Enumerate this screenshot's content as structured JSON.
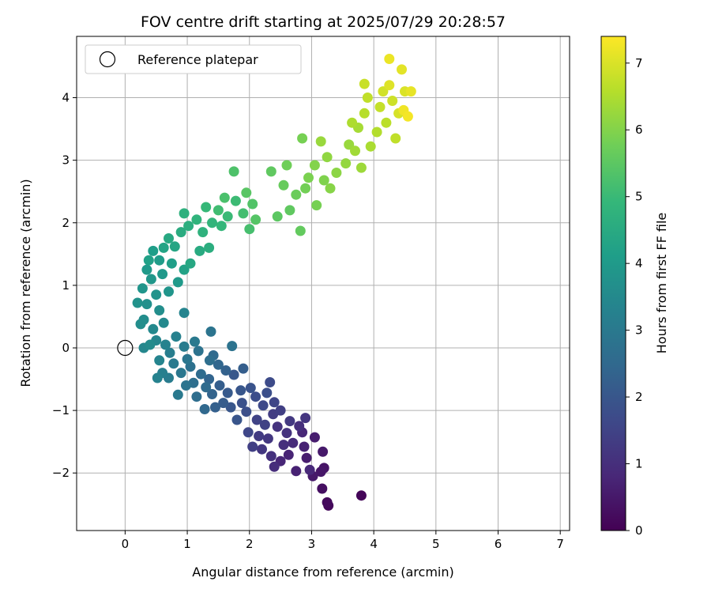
{
  "chart_data": {
    "type": "scatter",
    "title": "FOV centre drift starting at 2025/07/29 20:28:57",
    "xlabel": "Angular distance from reference (arcmin)",
    "ylabel": "Rotation from reference (arcmin)",
    "xlim": [
      -0.78,
      7.15
    ],
    "ylim": [
      -2.92,
      4.98
    ],
    "xticks": [
      0,
      1,
      2,
      3,
      4,
      5,
      6,
      7
    ],
    "yticks": [
      -2,
      -1,
      0,
      1,
      2,
      3,
      4
    ],
    "grid": true,
    "legend": {
      "position": "top-left",
      "entries": [
        "Reference platepar"
      ]
    },
    "reference_point": {
      "x": 0,
      "y": 0,
      "marker": "open-circle"
    },
    "colorbar": {
      "label": "Hours from first FF file",
      "range": [
        0,
        7.4
      ],
      "ticks": [
        0,
        1,
        2,
        3,
        4,
        5,
        6,
        7
      ],
      "colormap": "viridis"
    },
    "series": [
      {
        "points": [
          [
            3.8,
            -2.36,
            0.1
          ],
          [
            3.27,
            -2.52,
            0.15
          ],
          [
            3.25,
            -2.47,
            0.2
          ],
          [
            3.17,
            -2.25,
            0.3
          ],
          [
            3.2,
            -1.92,
            0.4
          ],
          [
            3.15,
            -1.98,
            0.45
          ],
          [
            3.02,
            -2.05,
            0.5
          ],
          [
            3.18,
            -1.66,
            0.5
          ],
          [
            3.05,
            -1.43,
            0.6
          ],
          [
            2.92,
            -1.76,
            0.6
          ],
          [
            2.75,
            -1.97,
            0.7
          ],
          [
            2.88,
            -1.58,
            0.7
          ],
          [
            2.63,
            -1.71,
            0.75
          ],
          [
            2.5,
            -1.81,
            0.8
          ],
          [
            2.85,
            -1.35,
            0.8
          ],
          [
            2.97,
            -1.95,
            0.85
          ],
          [
            2.7,
            -1.52,
            0.9
          ],
          [
            2.4,
            -1.9,
            0.95
          ],
          [
            2.55,
            -1.55,
            1.0
          ],
          [
            2.8,
            -1.25,
            1.0
          ],
          [
            2.35,
            -1.73,
            1.05
          ],
          [
            2.6,
            -1.36,
            1.1
          ],
          [
            2.45,
            -1.26,
            1.1
          ],
          [
            2.9,
            -1.12,
            1.15
          ],
          [
            2.2,
            -1.62,
            1.2
          ],
          [
            2.3,
            -1.45,
            1.2
          ],
          [
            2.65,
            -1.17,
            1.25
          ],
          [
            2.15,
            -1.41,
            1.3
          ],
          [
            2.38,
            -1.06,
            1.35
          ],
          [
            2.5,
            -1.0,
            1.4
          ],
          [
            2.05,
            -1.58,
            1.4
          ],
          [
            2.25,
            -1.23,
            1.45
          ],
          [
            2.12,
            -1.15,
            1.5
          ],
          [
            2.4,
            -0.87,
            1.55
          ],
          [
            1.98,
            -1.35,
            1.6
          ],
          [
            2.22,
            -0.92,
            1.65
          ],
          [
            2.33,
            -0.55,
            1.7
          ],
          [
            2.1,
            -0.78,
            1.75
          ],
          [
            1.95,
            -1.02,
            1.8
          ],
          [
            2.28,
            -0.72,
            1.8
          ],
          [
            1.88,
            -0.88,
            1.85
          ],
          [
            2.02,
            -0.64,
            1.9
          ],
          [
            1.8,
            -1.15,
            1.95
          ],
          [
            1.7,
            -0.95,
            2.0
          ],
          [
            1.86,
            -0.68,
            2.0
          ],
          [
            1.75,
            -0.43,
            2.05
          ],
          [
            1.65,
            -0.72,
            2.1
          ],
          [
            1.58,
            -0.88,
            2.15
          ],
          [
            1.9,
            -0.33,
            2.2
          ],
          [
            1.52,
            -0.6,
            2.2
          ],
          [
            1.45,
            -0.95,
            2.25
          ],
          [
            1.62,
            -0.36,
            2.3
          ],
          [
            1.4,
            -0.74,
            2.35
          ],
          [
            1.35,
            -0.5,
            2.4
          ],
          [
            1.5,
            -0.27,
            2.45
          ],
          [
            1.28,
            -0.98,
            2.5
          ],
          [
            1.3,
            -0.63,
            2.55
          ],
          [
            1.42,
            -0.12,
            2.55
          ],
          [
            1.22,
            -0.42,
            2.6
          ],
          [
            1.15,
            -0.78,
            2.65
          ],
          [
            1.36,
            -0.2,
            2.7
          ],
          [
            1.1,
            -0.56,
            2.7
          ],
          [
            1.05,
            -0.3,
            2.75
          ],
          [
            1.18,
            -0.05,
            2.8
          ],
          [
            1.72,
            0.03,
            2.8
          ],
          [
            1.38,
            0.26,
            2.85
          ],
          [
            0.98,
            -0.6,
            2.85
          ],
          [
            1.0,
            -0.18,
            2.9
          ],
          [
            0.9,
            -0.4,
            2.95
          ],
          [
            1.12,
            0.1,
            3.0
          ],
          [
            0.85,
            -0.75,
            3.0
          ],
          [
            0.78,
            -0.25,
            3.05
          ],
          [
            0.95,
            0.02,
            3.1
          ],
          [
            0.7,
            -0.48,
            3.1
          ],
          [
            0.72,
            -0.08,
            3.15
          ],
          [
            0.6,
            -0.4,
            3.2
          ],
          [
            0.82,
            0.18,
            3.25
          ],
          [
            0.65,
            0.05,
            3.3
          ],
          [
            0.52,
            -0.48,
            3.3
          ],
          [
            0.55,
            -0.2,
            3.35
          ],
          [
            0.95,
            0.56,
            3.35
          ],
          [
            0.5,
            0.12,
            3.4
          ],
          [
            0.3,
            0.0,
            3.45
          ],
          [
            0.45,
            0.3,
            3.5
          ],
          [
            0.62,
            0.4,
            3.5
          ],
          [
            0.4,
            0.05,
            3.55
          ],
          [
            0.3,
            0.45,
            3.6
          ],
          [
            0.25,
            0.38,
            3.65
          ],
          [
            0.55,
            0.6,
            3.65
          ],
          [
            0.35,
            0.7,
            3.7
          ],
          [
            0.2,
            0.72,
            3.75
          ],
          [
            0.5,
            0.85,
            3.8
          ],
          [
            0.28,
            0.95,
            3.85
          ],
          [
            0.7,
            0.9,
            3.85
          ],
          [
            0.42,
            1.1,
            3.9
          ],
          [
            0.6,
            1.18,
            3.95
          ],
          [
            0.35,
            1.25,
            4.0
          ],
          [
            0.85,
            1.05,
            4.0
          ],
          [
            0.55,
            1.4,
            4.05
          ],
          [
            0.45,
            1.55,
            4.1
          ],
          [
            0.75,
            1.35,
            4.15
          ],
          [
            0.38,
            1.4,
            4.2
          ],
          [
            0.95,
            1.25,
            4.25
          ],
          [
            0.62,
            1.6,
            4.3
          ],
          [
            0.8,
            1.62,
            4.35
          ],
          [
            1.05,
            1.35,
            4.4
          ],
          [
            0.7,
            1.75,
            4.45
          ],
          [
            1.2,
            1.55,
            4.5
          ],
          [
            0.9,
            1.85,
            4.55
          ],
          [
            1.35,
            1.6,
            4.6
          ],
          [
            1.02,
            1.95,
            4.65
          ],
          [
            0.95,
            2.15,
            4.7
          ],
          [
            1.25,
            1.85,
            4.75
          ],
          [
            1.15,
            2.05,
            4.8
          ],
          [
            1.4,
            2.0,
            4.85
          ],
          [
            1.55,
            1.95,
            4.9
          ],
          [
            1.3,
            2.25,
            4.95
          ],
          [
            1.65,
            2.1,
            5.0
          ],
          [
            1.78,
            2.35,
            5.05
          ],
          [
            1.5,
            2.2,
            5.1
          ],
          [
            1.9,
            2.15,
            5.15
          ],
          [
            2.0,
            1.9,
            5.2
          ],
          [
            1.6,
            2.4,
            5.25
          ],
          [
            1.75,
            2.82,
            5.3
          ],
          [
            2.05,
            2.3,
            5.35
          ],
          [
            2.1,
            2.05,
            5.4
          ],
          [
            1.95,
            2.48,
            5.45
          ],
          [
            2.45,
            2.1,
            5.5
          ],
          [
            2.35,
            2.82,
            5.55
          ],
          [
            2.65,
            2.2,
            5.55
          ],
          [
            2.82,
            1.87,
            5.6
          ],
          [
            2.55,
            2.6,
            5.65
          ],
          [
            2.75,
            2.45,
            5.7
          ],
          [
            2.6,
            2.92,
            5.75
          ],
          [
            2.9,
            2.55,
            5.8
          ],
          [
            2.85,
            3.35,
            5.85
          ],
          [
            3.08,
            2.28,
            5.85
          ],
          [
            2.95,
            2.72,
            5.9
          ],
          [
            3.2,
            2.68,
            5.95
          ],
          [
            3.05,
            2.92,
            6.0
          ],
          [
            3.3,
            2.55,
            6.05
          ],
          [
            3.4,
            2.8,
            6.1
          ],
          [
            3.25,
            3.05,
            6.15
          ],
          [
            3.55,
            2.95,
            6.2
          ],
          [
            3.6,
            3.25,
            6.25
          ],
          [
            3.15,
            3.3,
            6.25
          ],
          [
            3.8,
            2.88,
            6.3
          ],
          [
            3.7,
            3.15,
            6.35
          ],
          [
            3.75,
            3.52,
            6.4
          ],
          [
            3.95,
            3.22,
            6.45
          ],
          [
            3.65,
            3.6,
            6.5
          ],
          [
            4.05,
            3.45,
            6.55
          ],
          [
            3.85,
            3.75,
            6.6
          ],
          [
            4.2,
            3.6,
            6.65
          ],
          [
            3.9,
            4.0,
            6.7
          ],
          [
            4.35,
            3.35,
            6.7
          ],
          [
            4.1,
            3.85,
            6.75
          ],
          [
            3.85,
            4.22,
            6.8
          ],
          [
            4.3,
            3.95,
            6.85
          ],
          [
            4.15,
            4.1,
            6.9
          ],
          [
            4.4,
            3.75,
            6.95
          ],
          [
            4.5,
            4.1,
            7.0
          ],
          [
            4.25,
            4.2,
            7.05
          ],
          [
            4.45,
            4.45,
            7.1
          ],
          [
            4.6,
            4.1,
            7.15
          ],
          [
            4.25,
            4.62,
            7.2
          ],
          [
            4.48,
            3.8,
            7.25
          ],
          [
            4.55,
            3.7,
            7.3
          ]
        ]
      }
    ]
  }
}
